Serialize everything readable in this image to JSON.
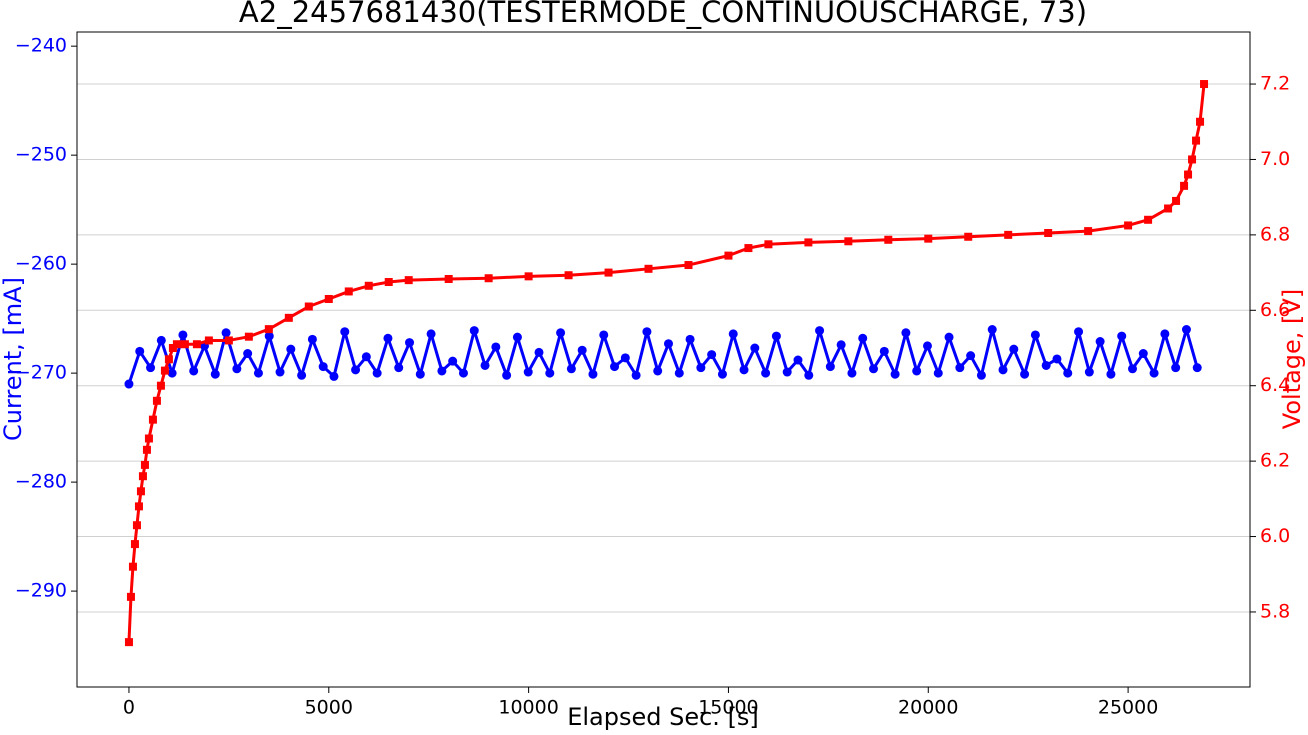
{
  "chart_data": {
    "type": "line",
    "title": "A2_2457681430(TESTERMODE_CONTINUOUSCHARGE, 73)",
    "xlabel": "Elapsed Sec. [s]",
    "ylabel": "Current, [mA]",
    "y2label": "Voltage, [V]",
    "xlim": [
      -1300,
      28050
    ],
    "xticks": [
      0,
      5000,
      10000,
      15000,
      20000,
      25000
    ],
    "ylim": [
      -298.8,
      -238.7
    ],
    "yticks": [
      {
        "value": -290,
        "label": "−290"
      },
      {
        "value": -280,
        "label": "−280"
      },
      {
        "value": -270,
        "label": "−270"
      },
      {
        "value": -260,
        "label": "−260"
      },
      {
        "value": -250,
        "label": "−250"
      },
      {
        "value": -240,
        "label": "−240"
      }
    ],
    "y2lim": [
      5.601,
      7.338
    ],
    "y2ticks": [
      5.8,
      {
        "value": 6.0,
        "label": "6.0"
      },
      6.2,
      6.4,
      6.6,
      6.8,
      {
        "value": 7.0,
        "label": "7.0"
      },
      7.2
    ],
    "grid": true,
    "series": [
      {
        "color": "#0000ff",
        "marker": "circle",
        "x": [
          0,
          270,
          540,
          810,
          1080,
          1350,
          1620,
          1890,
          2160,
          2430,
          2700,
          2970,
          3240,
          3510,
          3780,
          4050,
          4320,
          4590,
          4860,
          5130,
          5400,
          5670,
          5940,
          6210,
          6480,
          6750,
          7020,
          7290,
          7560,
          7830,
          8100,
          8370,
          8640,
          8910,
          9180,
          9450,
          9720,
          9990,
          10260,
          10530,
          10800,
          11070,
          11340,
          11610,
          11880,
          12150,
          12420,
          12690,
          12960,
          13230,
          13500,
          13770,
          14040,
          14310,
          14580,
          14850,
          15120,
          15390,
          15660,
          15930,
          16200,
          16470,
          16740,
          17010,
          17280,
          17550,
          17820,
          18090,
          18360,
          18630,
          18900,
          19170,
          19440,
          19710,
          19980,
          20250,
          20520,
          20790,
          21060,
          21330,
          21600,
          21870,
          22140,
          22410,
          22680,
          22950,
          23220,
          23490,
          23760,
          24030,
          24300,
          24570,
          24840,
          25110,
          25380,
          25650,
          25920,
          26190,
          26460,
          26730
        ],
        "values": [
          -271,
          -268,
          -269.5,
          -267,
          -270,
          -266.5,
          -269.8,
          -267.5,
          -270.1,
          -266.3,
          -269.6,
          -268.2,
          -270,
          -266.6,
          -269.9,
          -267.8,
          -270.2,
          -266.9,
          -269.4,
          -270.3,
          -266.2,
          -269.7,
          -268.5,
          -270,
          -266.8,
          -269.5,
          -267.2,
          -270.1,
          -266.4,
          -269.8,
          -268.9,
          -270,
          -266.1,
          -269.3,
          -267.6,
          -270.2,
          -266.7,
          -269.9,
          -268.1,
          -270,
          -266.3,
          -269.6,
          -267.9,
          -270.1,
          -266.5,
          -269.4,
          -268.6,
          -270.2,
          -266.2,
          -269.8,
          -267.3,
          -270,
          -266.9,
          -269.5,
          -268.3,
          -270.1,
          -266.4,
          -269.7,
          -267.7,
          -270,
          -266.6,
          -269.9,
          -268.8,
          -270.2,
          -266.1,
          -269.4,
          -267.4,
          -270,
          -266.8,
          -269.6,
          -268,
          -270.1,
          -266.3,
          -269.8,
          -267.5,
          -270,
          -266.7,
          -269.5,
          -268.4,
          -270.2,
          -266,
          -269.7,
          -267.8,
          -270.1,
          -266.5,
          -269.3,
          -268.7,
          -270,
          -266.2,
          -269.9,
          -267.1,
          -270.1,
          -266.6,
          -269.6,
          -268.2,
          -270,
          -266.4,
          -269.5,
          -266,
          -269.5
        ]
      },
      {
        "color": "#ff0000",
        "marker": "square",
        "axis": "y2",
        "x": [
          0,
          50,
          100,
          150,
          200,
          250,
          300,
          350,
          400,
          450,
          500,
          600,
          700,
          800,
          900,
          1000,
          1100,
          1200,
          1400,
          1700,
          2000,
          2500,
          3000,
          3500,
          4000,
          4500,
          5000,
          5500,
          6000,
          6500,
          7000,
          8000,
          9000,
          10000,
          11000,
          12000,
          13000,
          14000,
          15000,
          15500,
          16000,
          17000,
          18000,
          19000,
          20000,
          21000,
          22000,
          23000,
          24000,
          25000,
          25500,
          26000,
          26200,
          26400,
          26500,
          26600,
          26700,
          26800,
          26900
        ],
        "values": [
          5.72,
          5.84,
          5.92,
          5.98,
          6.03,
          6.08,
          6.12,
          6.16,
          6.19,
          6.23,
          6.26,
          6.31,
          6.36,
          6.4,
          6.44,
          6.47,
          6.5,
          6.51,
          6.51,
          6.51,
          6.52,
          6.52,
          6.53,
          6.55,
          6.58,
          6.61,
          6.63,
          6.65,
          6.665,
          6.675,
          6.68,
          6.683,
          6.685,
          6.69,
          6.693,
          6.7,
          6.71,
          6.72,
          6.745,
          6.765,
          6.775,
          6.78,
          6.783,
          6.787,
          6.79,
          6.795,
          6.8,
          6.805,
          6.81,
          6.825,
          6.84,
          6.87,
          6.89,
          6.93,
          6.96,
          7.0,
          7.05,
          7.1,
          7.2
        ]
      }
    ]
  }
}
